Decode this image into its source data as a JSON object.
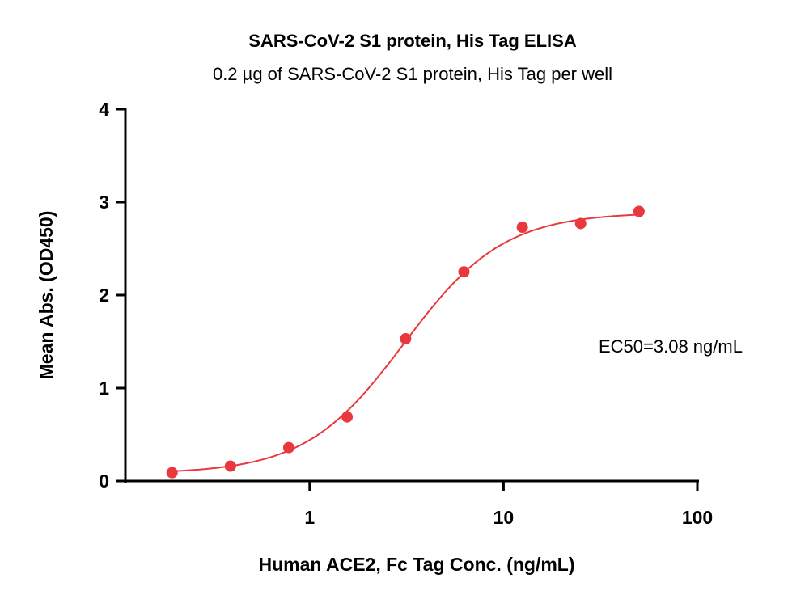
{
  "chart_data": {
    "type": "scatter",
    "title": "SARS-CoV-2 S1 protein, His Tag ELISA",
    "subtitle": "0.2 µg of SARS-CoV-2 S1 protein, His Tag per well",
    "xlabel": "Human ACE2, Fc Tag Conc. (ng/mL)",
    "ylabel": "Mean Abs. (OD450)",
    "xscale": "log",
    "xlim": [
      0.112,
      100
    ],
    "ylim": [
      0,
      4
    ],
    "xticks": [
      1,
      10,
      100
    ],
    "xtick_labels": [
      "1",
      "10",
      "100"
    ],
    "yticks": [
      0,
      1,
      2,
      3,
      4
    ],
    "ytick_labels": [
      "0",
      "1",
      "2",
      "3",
      "4"
    ],
    "grid": false,
    "series": [
      {
        "name": "Human ACE2, Fc Tag",
        "color": "#e8383d",
        "x": [
          0.195,
          0.39,
          0.78,
          1.56,
          3.125,
          6.25,
          12.5,
          25,
          50
        ],
        "y": [
          0.09,
          0.16,
          0.36,
          0.69,
          1.53,
          2.25,
          2.73,
          2.77,
          2.9
        ]
      }
    ],
    "fit": {
      "model": "4PL",
      "bottom": 0.08,
      "top": 2.89,
      "ec50": 3.08,
      "hill": 1.7
    },
    "annotation": "EC50=3.08 ng/mL"
  }
}
